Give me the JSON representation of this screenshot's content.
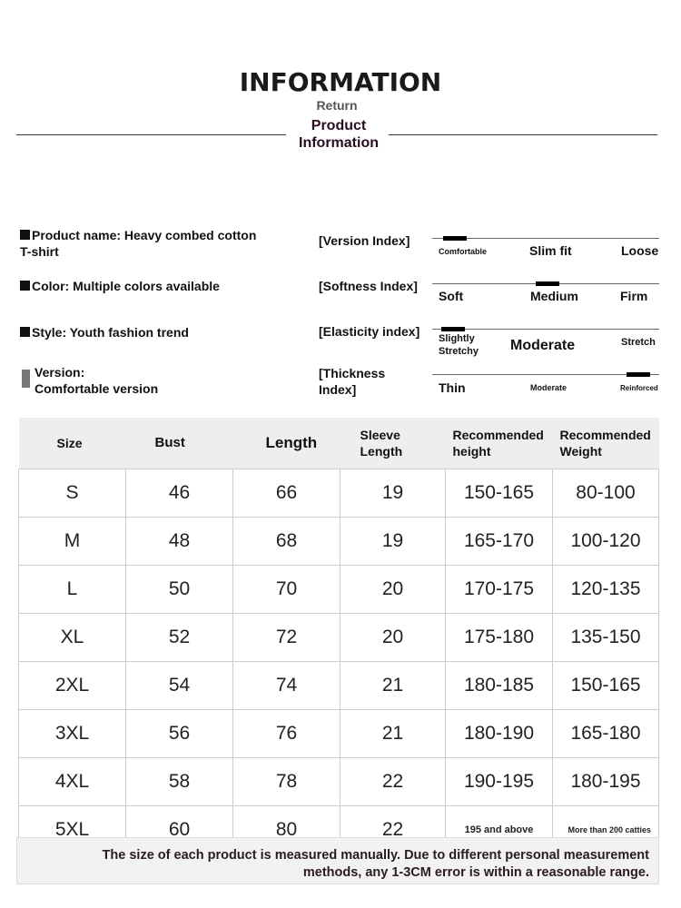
{
  "header": {
    "title": "INFORMATION",
    "return": "Return",
    "subtitle_line1": "Product",
    "subtitle_line2": "Information"
  },
  "info": [
    {
      "line1": "Product name: Heavy combed cotton",
      "line2": "T-shirt"
    },
    {
      "line1": "Color: Multiple colors available"
    },
    {
      "line1": "Style: Youth fashion trend"
    },
    {
      "line1": "Version:",
      "line2": "Comfortable version"
    }
  ],
  "indices": [
    {
      "name": "[Version Index]",
      "labels": [
        "Comfortable",
        "Slim fit",
        "Loose"
      ],
      "level": 0.05
    },
    {
      "name": "[Softness Index]",
      "labels": [
        "Soft",
        "Medium",
        "Firm"
      ],
      "level": 0.5
    },
    {
      "name": "[Elasticity index]",
      "labels": [
        "Slightly Stretchy",
        "Moderate",
        "Stretch"
      ],
      "level": 0.05
    },
    {
      "name_line1": "[Thickness",
      "name_line2": "Index]",
      "labels": [
        "Thin",
        "Moderate",
        "Reinforced"
      ],
      "level": 0.95
    }
  ],
  "table": {
    "headers": [
      "Size",
      "Bust",
      "Length",
      "Sleeve Length",
      "Recommended height",
      "Recommended Weight"
    ],
    "rows": [
      [
        "S",
        "46",
        "66",
        "19",
        "150-165",
        "80-100"
      ],
      [
        "M",
        "48",
        "68",
        "19",
        "165-170",
        "100-120"
      ],
      [
        "L",
        "50",
        "70",
        "20",
        "170-175",
        "120-135"
      ],
      [
        "XL",
        "52",
        "72",
        "20",
        "175-180",
        "135-150"
      ],
      [
        "2XL",
        "54",
        "74",
        "21",
        "180-185",
        "150-165"
      ],
      [
        "3XL",
        "56",
        "76",
        "21",
        "180-190",
        "165-180"
      ],
      [
        "4XL",
        "58",
        "78",
        "22",
        "190-195",
        "180-195"
      ],
      [
        "5XL",
        "60",
        "80",
        "22",
        "195 and above",
        "More than 200 catties"
      ]
    ]
  },
  "note": {
    "line1": "The size of each product is measured manually. Due to different personal measurement",
    "line2": "methods, any 1-3CM error is within a reasonable range."
  }
}
